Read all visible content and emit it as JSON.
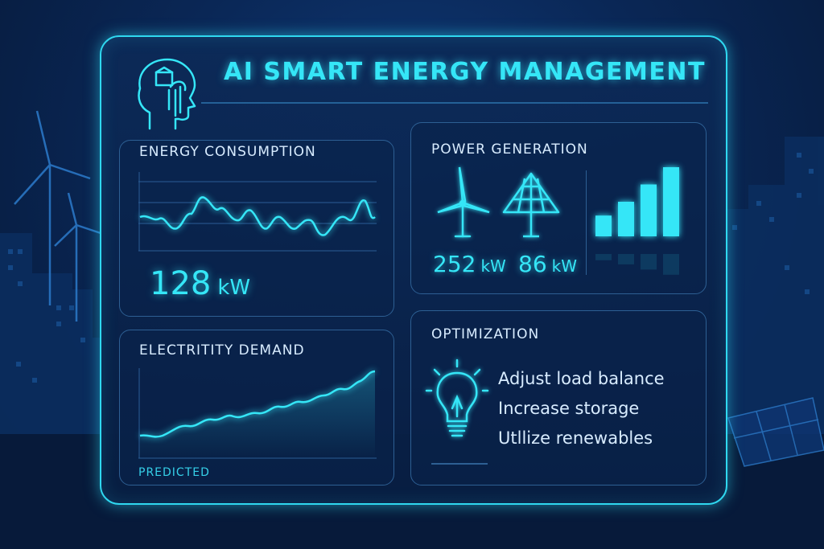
{
  "header": {
    "title": "AI SMART ENERGY MANAGEMENT",
    "icon": "ai-head-icon"
  },
  "energy_consumption": {
    "title": "ENERGY CONSUMPTION",
    "value": "128",
    "unit": "kW"
  },
  "power_generation": {
    "title": "POWER GENERATION",
    "wind_icon": "wind-turbine-icon",
    "solar_icon": "solar-panel-icon",
    "wind_value": "252",
    "wind_unit": "kW",
    "solar_value": "86",
    "solar_unit": "kW",
    "bar_levels": [
      0.3,
      0.5,
      0.75,
      1.0
    ]
  },
  "electricity_demand": {
    "title": "ELECTRITITY DEMAND",
    "caption": "PREDICTED"
  },
  "optimization": {
    "title": "OPTIMIZATION",
    "icon": "lightbulb-icon",
    "items": [
      "Adjust load balance",
      "Increase storage",
      "Utllize renewables"
    ]
  },
  "colors": {
    "accent": "#35e6f7",
    "text": "#d8ecff",
    "border": "#2fd8f0",
    "background": "#0a2756"
  }
}
